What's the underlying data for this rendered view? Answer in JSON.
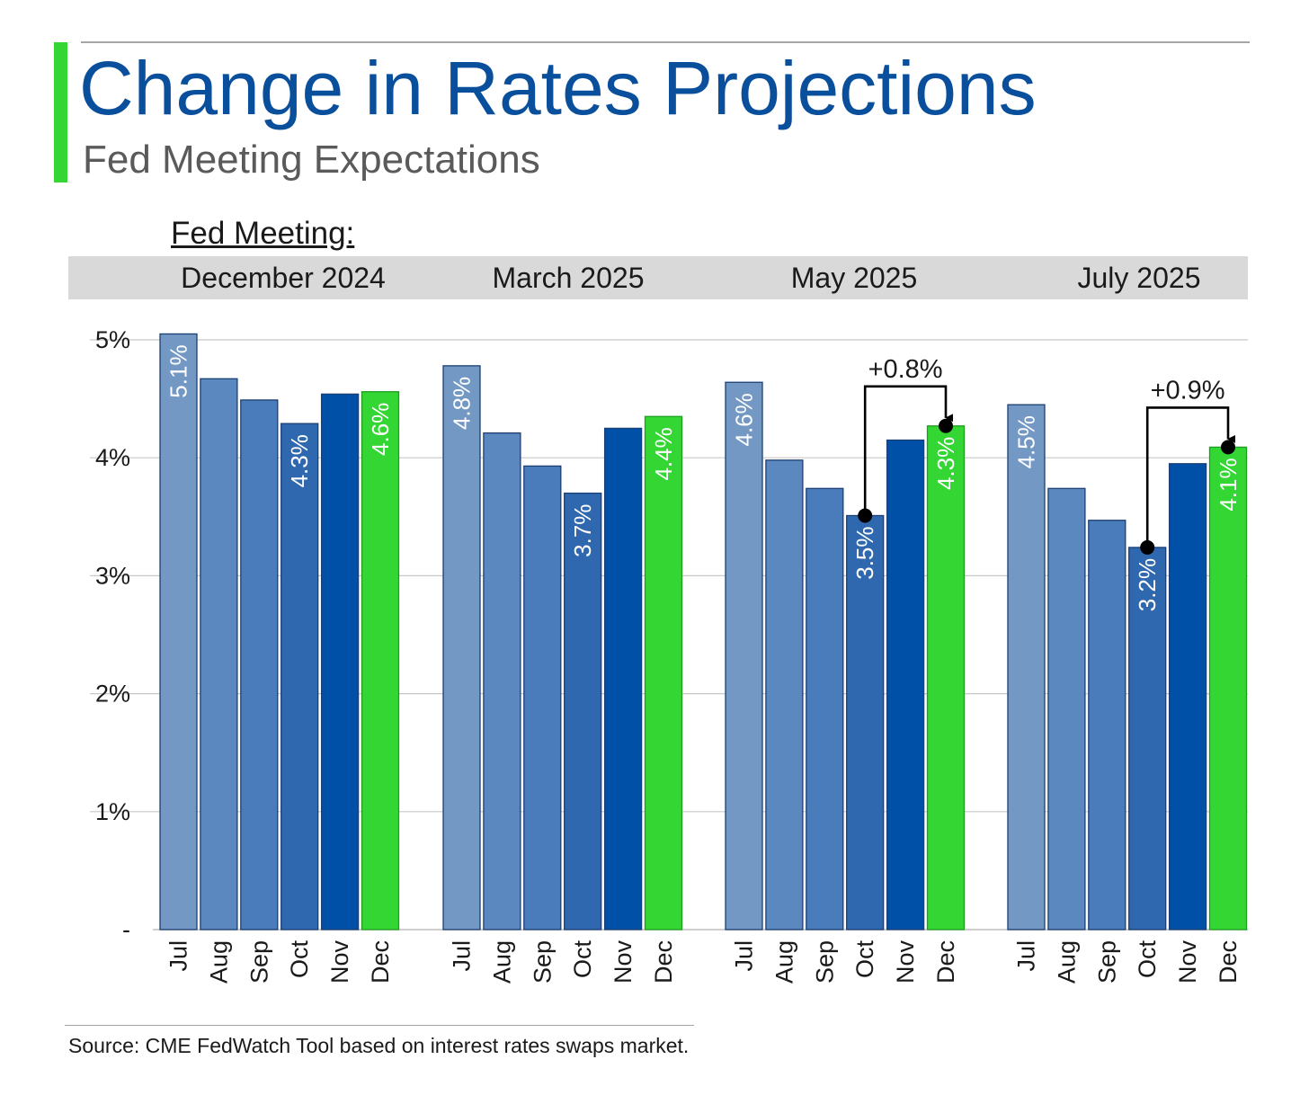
{
  "header": {
    "title": "Change in Rates Projections",
    "subtitle": "Fed Meeting Expectations",
    "meeting_label": "Fed Meeting:"
  },
  "footer": {
    "source": "Source: CME FedWatch Tool based on interest rates swaps market."
  },
  "colors": {
    "title": "#0a4f9c",
    "accent_green": "#33d633",
    "bar_jul": "#7398c4",
    "bar_aug": "#5b88bf",
    "bar_sep": "#4a7cbb",
    "bar_oct": "#2f68ae",
    "bar_nov": "#0050a8",
    "bar_dec": "#33d633",
    "band": "#d9d9d9"
  },
  "chart_data": {
    "type": "bar",
    "ylim": [
      0,
      5
    ],
    "yticks": [
      {
        "value": 0,
        "label": "-"
      },
      {
        "value": 1,
        "label": "1%"
      },
      {
        "value": 2,
        "label": "2%"
      },
      {
        "value": 3,
        "label": "3%"
      },
      {
        "value": 4,
        "label": "4%"
      },
      {
        "value": 5,
        "label": "5%"
      }
    ],
    "categories": [
      "Jul",
      "Aug",
      "Sep",
      "Oct",
      "Nov",
      "Dec"
    ],
    "grid": true,
    "groups": [
      {
        "name": "December 2024",
        "values": [
          5.05,
          4.67,
          4.49,
          4.29,
          4.54,
          4.56
        ],
        "labels": [
          "5.1%",
          "",
          "",
          "4.3%",
          "",
          "4.6%"
        ]
      },
      {
        "name": "March 2025",
        "values": [
          4.78,
          4.21,
          3.93,
          3.7,
          4.25,
          4.35
        ],
        "labels": [
          "4.8%",
          "",
          "",
          "3.7%",
          "",
          "4.4%"
        ]
      },
      {
        "name": "May 2025",
        "values": [
          4.64,
          3.98,
          3.74,
          3.51,
          4.15,
          4.27
        ],
        "labels": [
          "4.6%",
          "",
          "",
          "3.5%",
          "",
          "4.3%"
        ],
        "annotation": {
          "from": 3,
          "to": 5,
          "label": "+0.8%"
        }
      },
      {
        "name": "July 2025",
        "values": [
          4.45,
          3.74,
          3.47,
          3.24,
          3.95,
          4.09
        ],
        "labels": [
          "4.5%",
          "",
          "",
          "3.2%",
          "",
          "4.1%"
        ],
        "annotation": {
          "from": 3,
          "to": 5,
          "label": "+0.9%"
        }
      }
    ]
  }
}
